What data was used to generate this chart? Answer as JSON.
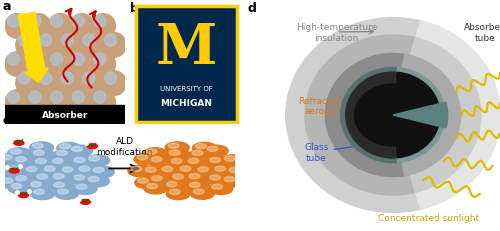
{
  "background_color": "#ffffff",
  "absorber_label": "Absorber",
  "ald_text": "ALD\nmodification",
  "labels_d": {
    "high_temp": "High-temperature\ninsulation",
    "absorber_tube": "Absorber\ntube",
    "refractory": "Refractory\naerogel",
    "glass_tube": "Glass\ntube",
    "sunlight": "Concentrated sunlight"
  },
  "label_colors": {
    "high_temp": "#888888",
    "absorber_tube": "#333333",
    "refractory": "#e07820",
    "glass_tube": "#3355cc",
    "sunlight": "#ccaa00"
  },
  "sphere_color_a": "#c8a07a",
  "sphere_highlight_a": "#aaccee",
  "sphere_color_c_before": "#88aacc",
  "sphere_color_c_after": "#e07820",
  "michigan_bg": "#00274c",
  "michigan_gold": "#ffcb05",
  "yellow_arrow": "#ffdd00",
  "red_wave": "#cc0000",
  "ring_colors": [
    "#d0d0d0",
    "#b0b0b0",
    "#909090",
    "#6a8a88",
    "#1a1a1a"
  ],
  "ring_highlight": [
    "#e8e8e8",
    "#c8c8c8",
    "#a8a8a8"
  ]
}
